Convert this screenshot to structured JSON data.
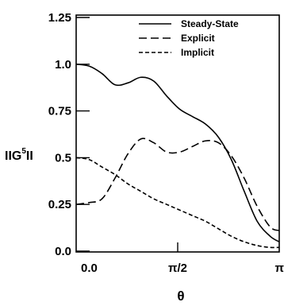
{
  "chart_data": {
    "type": "line",
    "xlabel": "θ",
    "ylabel": {
      "prefix": "IIG",
      "superscript": "5",
      "suffix": "II"
    },
    "xlim": [
      0,
      3.14159
    ],
    "ylim": [
      0,
      1.25
    ],
    "x_ticks": [
      {
        "value": 0,
        "label": "0.0"
      },
      {
        "value": 1.5708,
        "label": "π/2"
      },
      {
        "value": 3.14159,
        "label": "π"
      }
    ],
    "y_ticks": [
      {
        "value": 0.0,
        "label": "0.0"
      },
      {
        "value": 0.25,
        "label": "0.25"
      },
      {
        "value": 0.5,
        "label": "0.5"
      },
      {
        "value": 0.75,
        "label": "0.75"
      },
      {
        "value": 1.0,
        "label": "1.0"
      },
      {
        "value": 1.25,
        "label": "1.25"
      }
    ],
    "grid": false,
    "legend_position": "top-right",
    "series": [
      {
        "name": "Steady-State",
        "style": "solid",
        "color": "#000000",
        "points": [
          [
            0,
            1.0
          ],
          [
            0.2,
            0.99
          ],
          [
            0.4,
            0.95
          ],
          [
            0.6,
            0.89
          ],
          [
            0.8,
            0.9
          ],
          [
            1.0,
            0.93
          ],
          [
            1.2,
            0.91
          ],
          [
            1.4,
            0.83
          ],
          [
            1.6,
            0.76
          ],
          [
            1.8,
            0.72
          ],
          [
            2.0,
            0.68
          ],
          [
            2.2,
            0.61
          ],
          [
            2.4,
            0.49
          ],
          [
            2.6,
            0.32
          ],
          [
            2.8,
            0.16
          ],
          [
            3.0,
            0.08
          ],
          [
            3.14159,
            0.05
          ]
        ]
      },
      {
        "name": "Explicit",
        "style": "dashed",
        "color": "#000000",
        "points": [
          [
            0,
            0.25
          ],
          [
            0.2,
            0.26
          ],
          [
            0.4,
            0.28
          ],
          [
            0.6,
            0.39
          ],
          [
            0.8,
            0.52
          ],
          [
            1.0,
            0.6
          ],
          [
            1.2,
            0.58
          ],
          [
            1.4,
            0.53
          ],
          [
            1.6,
            0.53
          ],
          [
            1.8,
            0.56
          ],
          [
            2.0,
            0.59
          ],
          [
            2.2,
            0.58
          ],
          [
            2.4,
            0.51
          ],
          [
            2.6,
            0.39
          ],
          [
            2.8,
            0.24
          ],
          [
            3.0,
            0.13
          ],
          [
            3.14159,
            0.11
          ]
        ]
      },
      {
        "name": "Implicit",
        "style": "dotted",
        "color": "#000000",
        "points": [
          [
            0,
            0.5
          ],
          [
            0.2,
            0.49
          ],
          [
            0.4,
            0.45
          ],
          [
            0.6,
            0.41
          ],
          [
            0.8,
            0.36
          ],
          [
            1.0,
            0.32
          ],
          [
            1.2,
            0.28
          ],
          [
            1.4,
            0.25
          ],
          [
            1.6,
            0.22
          ],
          [
            1.8,
            0.19
          ],
          [
            2.0,
            0.16
          ],
          [
            2.2,
            0.12
          ],
          [
            2.4,
            0.08
          ],
          [
            2.6,
            0.05
          ],
          [
            2.8,
            0.03
          ],
          [
            3.0,
            0.02
          ],
          [
            3.14159,
            0.02
          ]
        ]
      }
    ]
  }
}
